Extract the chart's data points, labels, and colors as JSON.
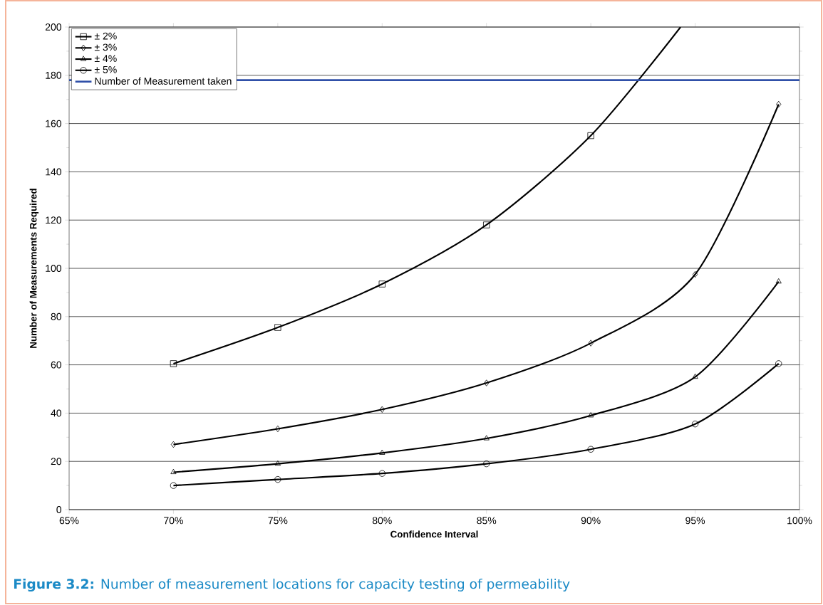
{
  "chart_data": {
    "type": "line",
    "xlabel": "Confidence Interval",
    "ylabel": "Number of Measurements Required",
    "x": [
      70,
      75,
      80,
      85,
      90,
      95,
      99
    ],
    "series": [
      {
        "name": "± 2%",
        "color": "#000000",
        "marker": "square",
        "x": [
          70,
          75,
          80,
          85,
          90,
          94.3
        ],
        "values": [
          60.5,
          75.5,
          93.5,
          118,
          155,
          200
        ]
      },
      {
        "name": "± 3%",
        "color": "#000000",
        "marker": "diamond",
        "values": [
          27,
          33.5,
          41.5,
          52.5,
          69,
          97.5,
          168
        ]
      },
      {
        "name": "± 4%",
        "color": "#000000",
        "marker": "triangle",
        "values": [
          15.5,
          19,
          23.5,
          29.5,
          39,
          55,
          94.5
        ]
      },
      {
        "name": "± 5%",
        "color": "#000000",
        "marker": "circle",
        "values": [
          10,
          12.5,
          15,
          19,
          25,
          35.5,
          60.5
        ]
      }
    ],
    "ref_lines": [
      {
        "axis": "y",
        "value": 178,
        "label": "Number of Measurement taken",
        "color": "#3050a8"
      }
    ],
    "xlim": [
      65,
      100
    ],
    "xticks": [
      {
        "value": 65,
        "label": "65%"
      },
      {
        "value": 70,
        "label": "70%"
      },
      {
        "value": 75,
        "label": "75%"
      },
      {
        "value": 80,
        "label": "80%"
      },
      {
        "value": 85,
        "label": "85%"
      },
      {
        "value": 90,
        "label": "90%"
      },
      {
        "value": 95,
        "label": "95%"
      },
      {
        "value": 100,
        "label": "100%"
      }
    ],
    "ylim": [
      0,
      200
    ],
    "yticks": [
      0,
      20,
      40,
      60,
      80,
      100,
      120,
      140,
      160,
      180,
      200
    ],
    "grid": "y",
    "legend": "top left",
    "line_style": "solid",
    "annotations": [
      "**Figure 3.2:** Number of measurement locations for capacity testing of permeability"
    ]
  }
}
